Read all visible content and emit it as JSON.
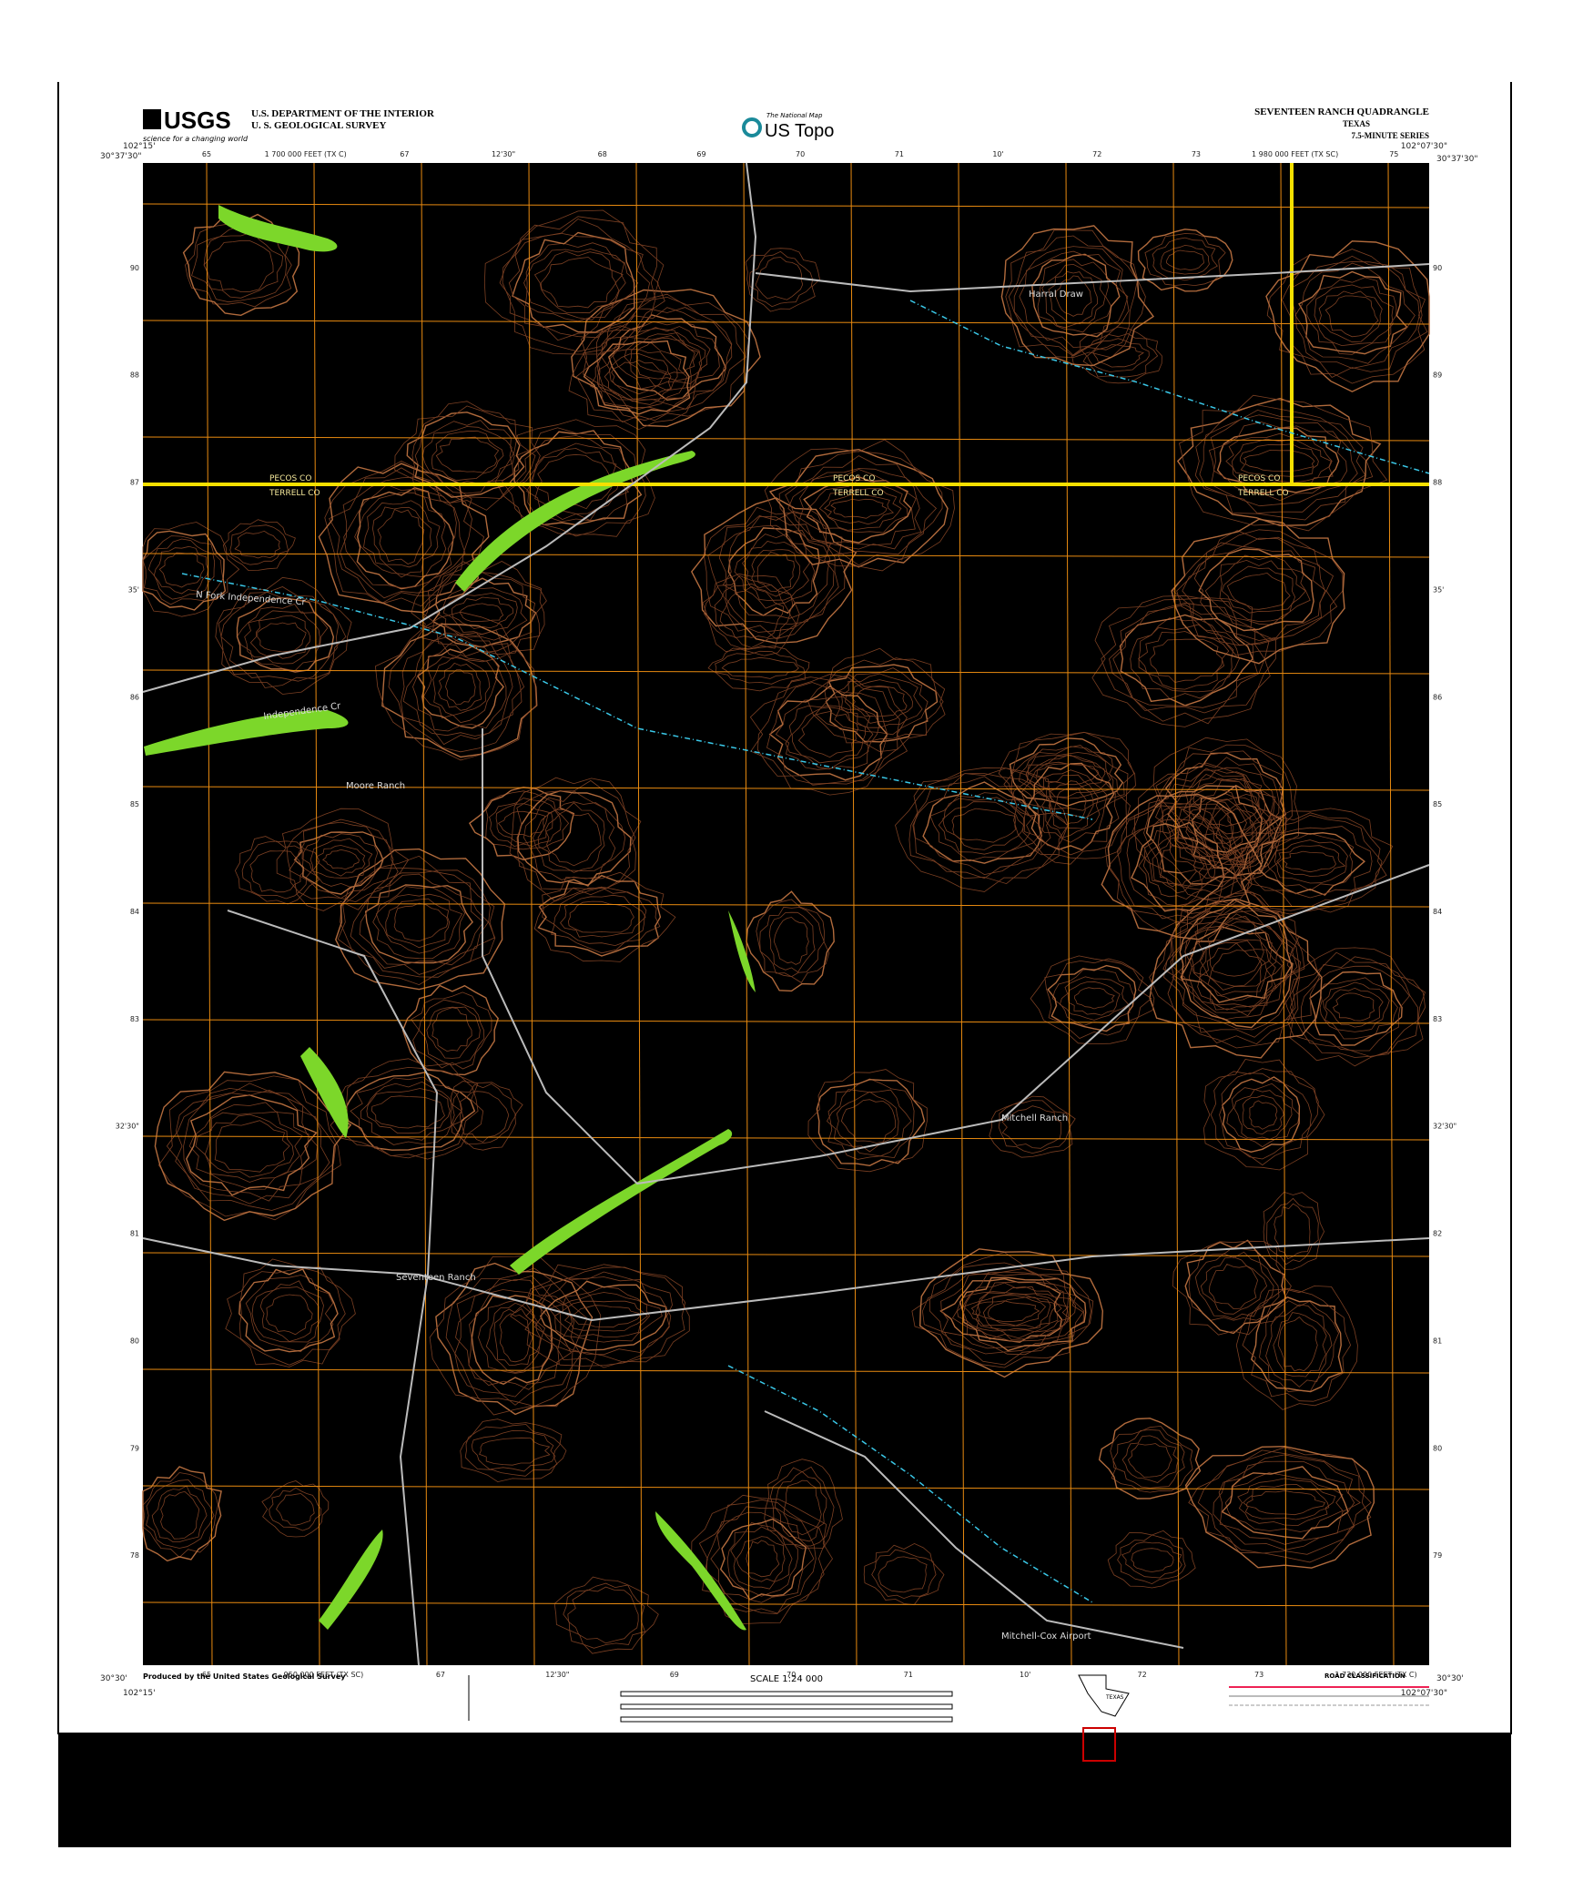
{
  "header": {
    "agency": "U.S. DEPARTMENT OF THE INTERIOR",
    "bureau": "U. S. GEOLOGICAL SURVEY",
    "logo": "USGS",
    "tagline": "science for a changing world",
    "program": "The National Map",
    "product": "US Topo",
    "quadrangle": "SEVENTEEN RANCH QUADRANGLE",
    "state": "TEXAS",
    "series": "7.5-MINUTE SERIES"
  },
  "corners": {
    "nw_lat": "30°37'30\"",
    "nw_lon": "102°15'",
    "ne_lat": "30°37'30\"",
    "ne_lon": "102°07'30\"",
    "sw_lat": "30°30'",
    "sw_lon": "102°15'",
    "se_lat": "30°30'",
    "se_lon": "102°07'30\""
  },
  "grid_labels": {
    "top": [
      "65",
      "1 700 000 FEET (TX C)",
      "67",
      "12'30\"",
      "68",
      "69",
      "70",
      "71",
      "10'",
      "72",
      "73",
      "1 980 000 FEET (TX SC)",
      "75"
    ],
    "bottom": [
      "65",
      "950 000 FEET (TX SC)",
      "67",
      "12'30\"",
      "69",
      "70",
      "71",
      "10'",
      "72",
      "73",
      "1 730 000 FEET (TX C)"
    ],
    "left": [
      "90",
      "88",
      "87",
      "35'",
      "86",
      "85",
      "84",
      "83",
      "32'30\"",
      "81",
      "80",
      "79",
      "78"
    ],
    "right": [
      "90",
      "89",
      "88",
      "35'",
      "86",
      "85",
      "84",
      "83",
      "32'30\"",
      "82",
      "81",
      "80",
      "79"
    ]
  },
  "places": {
    "independence": "Independence Cr",
    "north_fork": "N Fork Independence Cr",
    "pecos_1": "PECOS CO",
    "terrell_1": "TERRELL CO",
    "pecos_2": "PECOS CO",
    "terrell_2": "TERRELL CO",
    "pecos_3": "PECOS CO",
    "terrell_3": "TERRELL CO",
    "moore": "Moore Ranch",
    "harral": "Harral Draw",
    "mitchell": "Mitchell Ranch",
    "seventeen": "Seventeen Ranch",
    "airport": "Mitchell-Cox Airport"
  },
  "footer": {
    "producer": "Produced by the United States Geological Survey",
    "scale": "SCALE 1:24 000",
    "roads": "ROAD CLASSIFICATION",
    "state_inset": "TEXAS"
  }
}
